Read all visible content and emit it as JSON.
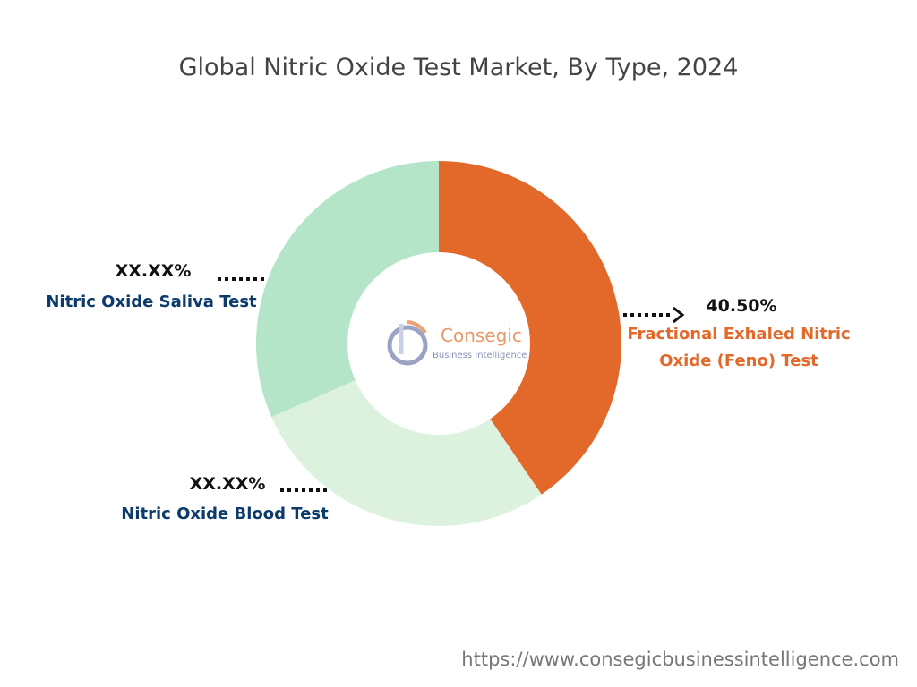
{
  "chart_data": {
    "type": "donut",
    "title": "Global Nitric Oxide Test Market, By Type, 2024",
    "categories": [
      "Fractional Exhaled Nitric Oxide (Feno) Test",
      "Nitric Oxide Blood Test",
      "Nitric Oxide Saliva Test"
    ],
    "values": [
      40.5,
      27.9,
      31.6
    ],
    "value_labels": [
      "40.50%",
      "XX.XX%",
      "XX.XX%"
    ],
    "colors": [
      "#E2692A",
      "#DCF2DF",
      "#B5E5C9"
    ]
  },
  "watermark": {
    "name": "Consegic",
    "tagline": "Business Intelligence"
  },
  "source": "https://www.consegicbusinessintelligence.com"
}
